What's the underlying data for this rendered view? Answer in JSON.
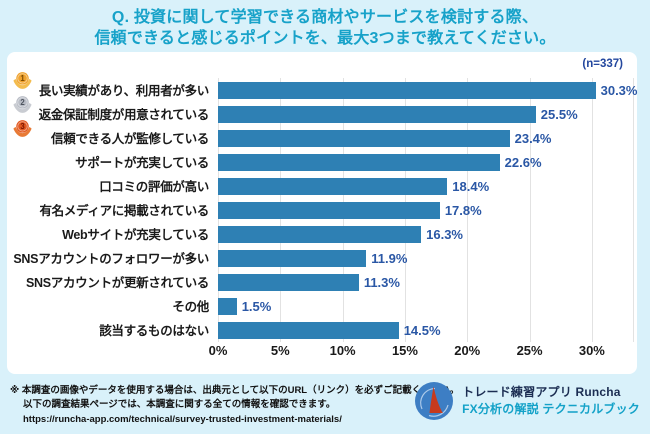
{
  "header": {
    "title_line1": "Q. 投資に関して学習できる商材やサービスを検討する際、",
    "title_line2": "信頼できると感じるポイントを、最大3つまで教えてください。"
  },
  "sample_size_label": "(n=337)",
  "chart_data": {
    "type": "bar",
    "orientation": "horizontal",
    "title": "投資に関して学習できる商材やサービスを検討する際、信頼できると感じるポイント（最大3つ）",
    "sample_size": 337,
    "categories": [
      "長い実績があり、利用者が多い",
      "返金保証制度が用意されている",
      "信頼できる人が監修している",
      "サポートが充実している",
      "口コミの評価が高い",
      "有名メディアに掲載されている",
      "Webサイトが充実している",
      "SNSアカウントのフォロワーが多い",
      "SNSアカウントが更新されている",
      "その他",
      "該当するものはない"
    ],
    "values": [
      30.3,
      25.5,
      23.4,
      22.6,
      18.4,
      17.8,
      16.3,
      11.9,
      11.3,
      1.5,
      14.5
    ],
    "value_labels": [
      "30.3%",
      "25.5%",
      "23.4%",
      "22.6%",
      "18.4%",
      "17.8%",
      "16.3%",
      "11.9%",
      "11.3%",
      "1.5%",
      "14.5%"
    ],
    "x_ticks": [
      "0%",
      "5%",
      "10%",
      "15%",
      "20%",
      "25%",
      "30%"
    ],
    "xlim": [
      0,
      33.3
    ],
    "grid": true,
    "legend": false
  },
  "medals": [
    {
      "name": "gold-medal-icon",
      "rank": "1",
      "circle": "#efa22d",
      "wings": "#f3bc4e",
      "digit": "#7c4a00"
    },
    {
      "name": "silver-medal-icon",
      "rank": "2",
      "circle": "#b9bdc6",
      "wings": "#c9ccd2",
      "digit": "#4e545e"
    },
    {
      "name": "bronze-medal-icon",
      "rank": "3",
      "circle": "#e1571f",
      "wings": "#e87a35",
      "digit": "#7a1500"
    }
  ],
  "footer": {
    "note_line1": "※ 本調査の画像やデータを使用する場合は、出典元として以下のURL（リンク）を必ずご記載ください。",
    "note_line2": "以下の調査結果ページでは、本調査に関する全ての情報を確認できます。",
    "url": "https://runcha-app.com/technical/survey-trusted-investment-materials/",
    "brand_line1": "トレード練習アプリ  Runcha",
    "brand_line2": "FX分析の解説  テクニカルブック"
  },
  "colors": {
    "page_bg": "#d9f1fa",
    "card_bg": "#ffffff",
    "title_text": "#17a2c9",
    "bar": "#2e80b4",
    "value_text": "#2a57a5",
    "n_label": "#23479e",
    "category_text": "#1a1a1a",
    "axis_text": "#1a1a1a",
    "gridline": "#e2e2e2",
    "footer_text": "#111111",
    "brand_navy": "#1b2d52",
    "brand_teal": "#14a2c8",
    "logo_blue": "#3d7ec4",
    "logo_red": "#c63a1e"
  }
}
